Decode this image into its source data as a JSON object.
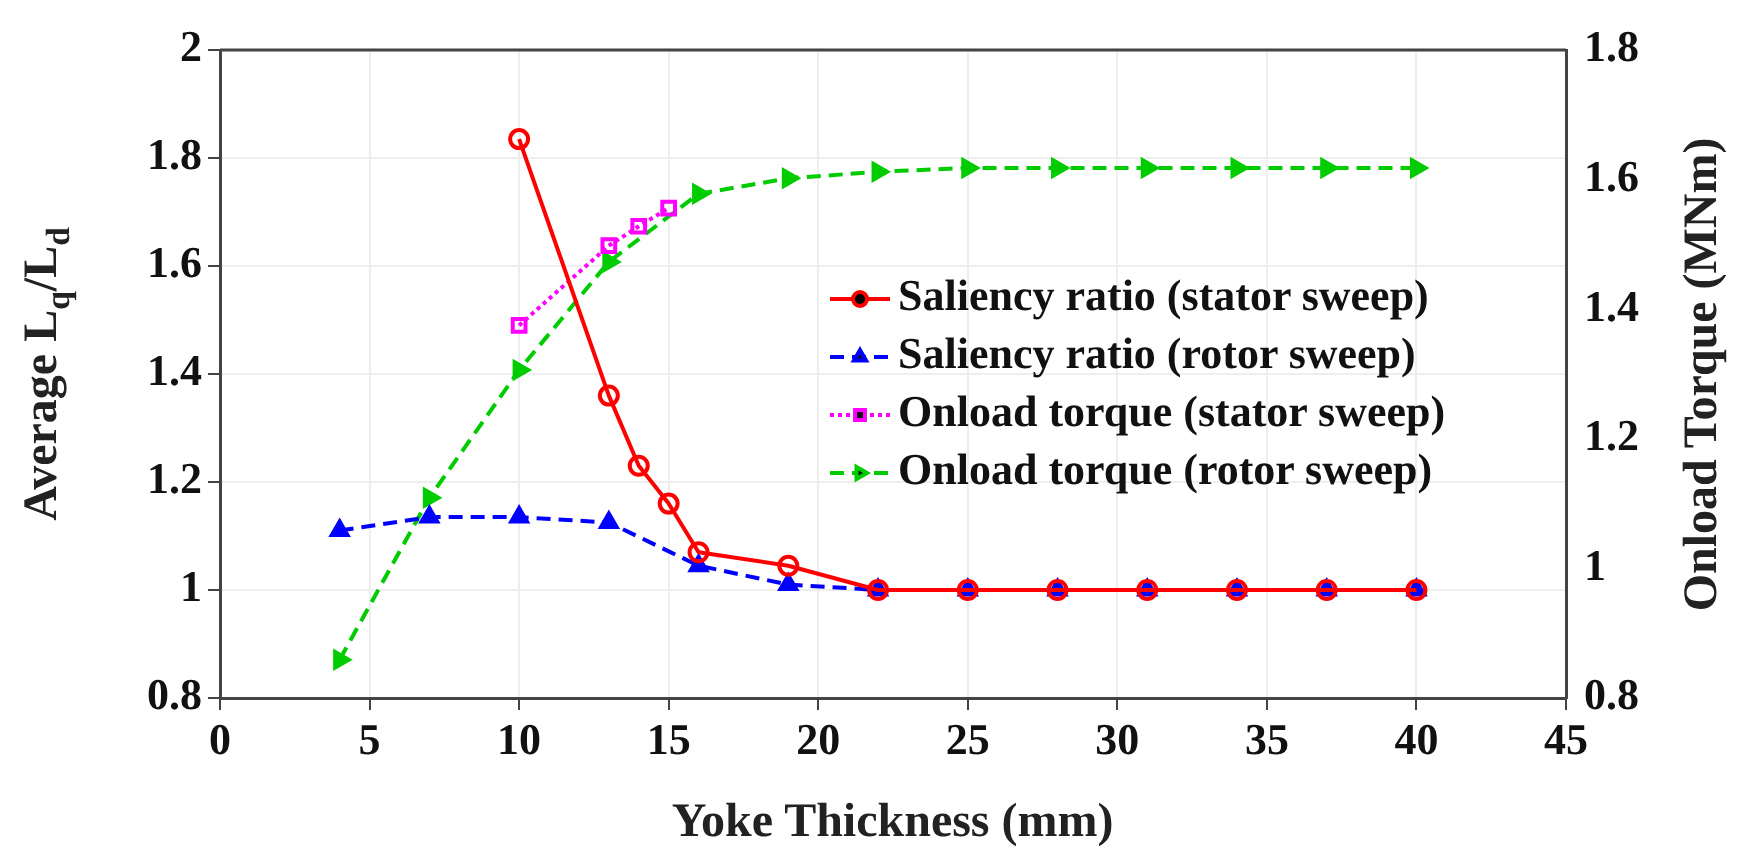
{
  "chart_data": {
    "type": "line",
    "xlabel": "Yoke Thickness (mm)",
    "ylabel": "Average L$_{q}$/L$_{d}$",
    "y2label": "Onload Torque (MNm)",
    "xlim": [
      0,
      45
    ],
    "xticks": [
      0,
      5,
      10,
      15,
      20,
      25,
      30,
      35,
      40,
      45
    ],
    "ylim": [
      0.8,
      2
    ],
    "yticks": [
      0.8,
      1,
      1.2,
      1.4,
      1.6,
      1.8,
      2
    ],
    "y2lim": [
      0.8,
      1.8
    ],
    "y2ticks": [
      0.8,
      1,
      1.2,
      1.4,
      1.6,
      1.8
    ],
    "grid": true,
    "legend": "center right",
    "series": [
      {
        "name": "Saliency ratio (stator sweep)",
        "color": "#ff0000",
        "marker": "circle",
        "line_style": "solid",
        "x": [
          10,
          13,
          14,
          15,
          16,
          19,
          22,
          25,
          28,
          31,
          34,
          37,
          40
        ],
        "values": [
          1.835,
          1.36,
          1.23,
          1.16,
          1.07,
          1.045,
          1.0,
          1.0,
          1.0,
          1.0,
          1.0,
          1.0,
          1.0
        ]
      },
      {
        "name": "Saliency ratio (rotor sweep)",
        "color": "#0000ff",
        "marker": "triangle",
        "line_style": "dashed",
        "x": [
          4,
          7,
          10,
          13,
          16,
          19,
          22,
          25,
          28,
          31,
          34,
          37,
          40
        ],
        "values": [
          1.11,
          1.135,
          1.135,
          1.125,
          1.045,
          1.01,
          1.0,
          1.0,
          1.0,
          1.0,
          1.0,
          1.0,
          1.0
        ]
      },
      {
        "name": "Onload torque (stator sweep)",
        "color": "#ff00ff",
        "marker": "square",
        "line_style": "dotted",
        "axis": "y2",
        "x": [
          10,
          13,
          14,
          15
        ],
        "values": [
          1.375,
          1.498,
          1.528,
          1.556
        ]
      },
      {
        "name": "Onload torque (rotor sweep)",
        "color": "#00cc00",
        "marker": "triangle-right",
        "line_style": "dashed",
        "axis": "y2",
        "x": [
          4,
          7,
          10,
          13,
          16,
          19,
          22,
          25,
          28,
          31,
          34,
          37,
          40
        ],
        "values": [
          0.859,
          1.109,
          1.306,
          1.473,
          1.578,
          1.602,
          1.612,
          1.618,
          1.618,
          1.618,
          1.618,
          1.618,
          1.618
        ]
      }
    ]
  }
}
